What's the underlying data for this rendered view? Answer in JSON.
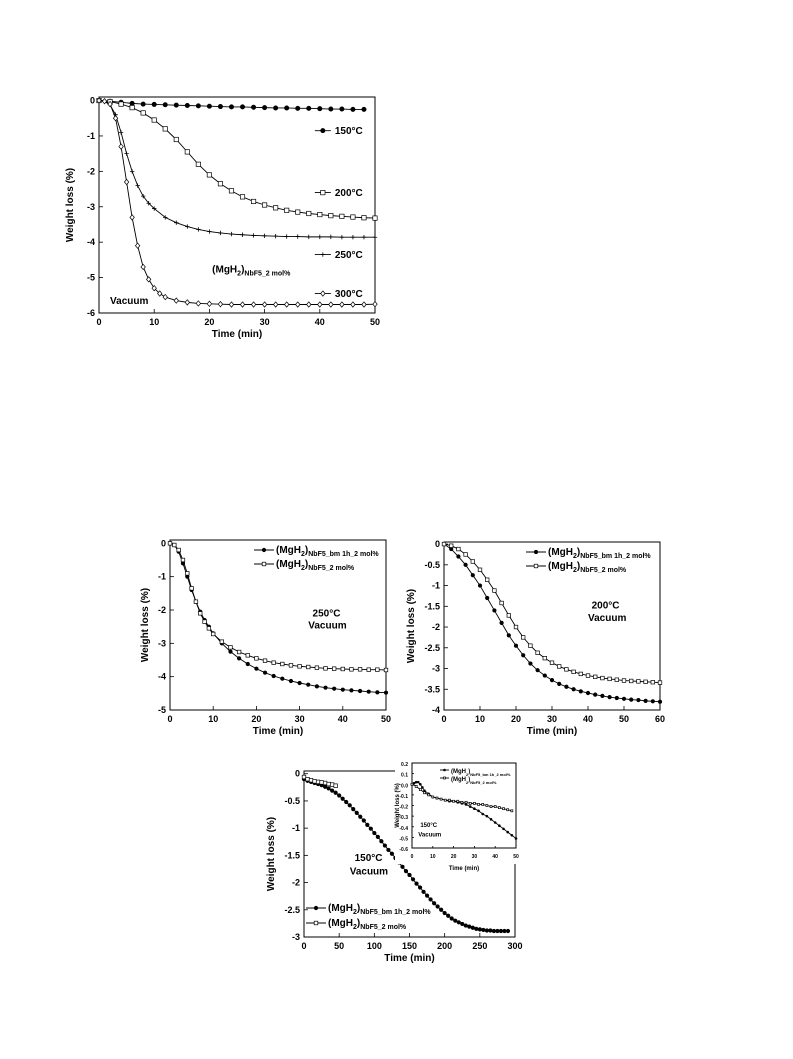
{
  "chart_data": [
    {
      "id": "top",
      "type": "line",
      "xlabel": "Time (min)",
      "ylabel": "Weight loss (%)",
      "xlim": [
        0,
        50
      ],
      "ylim": [
        -6,
        0.1
      ],
      "xticks": [
        0,
        10,
        20,
        30,
        40,
        50
      ],
      "yticks": [
        0,
        -1,
        -2,
        -3,
        -4,
        -5,
        -6
      ],
      "annotations": [
        {
          "main": "(MgH",
          "sub1": "2",
          "close": ")",
          "sub2": "NbF5_2 mol%",
          "at": [
            20.5,
            -4.85
          ]
        },
        {
          "main": "Vacuum",
          "at": [
            2,
            -5.75
          ]
        }
      ],
      "series": [
        {
          "name": "150°C",
          "marker": "filled-circle",
          "label_at": [
            42,
            -0.85
          ],
          "x": [
            0,
            2,
            4,
            6,
            8,
            10,
            12,
            14,
            16,
            18,
            20,
            22,
            24,
            26,
            28,
            30,
            32,
            34,
            36,
            38,
            40,
            42,
            44,
            46,
            48
          ],
          "y": [
            0,
            -0.02,
            -0.05,
            -0.08,
            -0.1,
            -0.11,
            -0.12,
            -0.13,
            -0.14,
            -0.15,
            -0.16,
            -0.17,
            -0.18,
            -0.18,
            -0.19,
            -0.2,
            -0.21,
            -0.21,
            -0.22,
            -0.22,
            -0.23,
            -0.24,
            -0.24,
            -0.25,
            -0.25
          ]
        },
        {
          "name": "200°C",
          "marker": "open-square",
          "label_at": [
            42,
            -2.6
          ],
          "x": [
            0,
            2,
            4,
            6,
            8,
            10,
            12,
            14,
            16,
            18,
            20,
            22,
            24,
            26,
            28,
            30,
            32,
            34,
            36,
            38,
            40,
            42,
            44,
            46,
            48,
            50
          ],
          "y": [
            0,
            -0.03,
            -0.1,
            -0.2,
            -0.35,
            -0.55,
            -0.8,
            -1.1,
            -1.45,
            -1.8,
            -2.1,
            -2.35,
            -2.55,
            -2.72,
            -2.85,
            -2.95,
            -3.03,
            -3.1,
            -3.15,
            -3.19,
            -3.22,
            -3.25,
            -3.27,
            -3.29,
            -3.31,
            -3.32
          ]
        },
        {
          "name": "250°C",
          "marker": "plus",
          "label_at": [
            42,
            -4.35
          ],
          "x": [
            0,
            1,
            2,
            3,
            4,
            5,
            6,
            7,
            8,
            9,
            10,
            12,
            14,
            16,
            18,
            20,
            22,
            24,
            26,
            28,
            30,
            32,
            34,
            36,
            38,
            40,
            42,
            44,
            46,
            48,
            50
          ],
          "y": [
            0,
            -0.03,
            -0.12,
            -0.4,
            -0.9,
            -1.5,
            -2.0,
            -2.4,
            -2.7,
            -2.9,
            -3.05,
            -3.3,
            -3.45,
            -3.56,
            -3.64,
            -3.7,
            -3.74,
            -3.77,
            -3.79,
            -3.81,
            -3.82,
            -3.83,
            -3.84,
            -3.84,
            -3.85,
            -3.85,
            -3.85,
            -3.86,
            -3.86,
            -3.86,
            -3.86
          ]
        },
        {
          "name": "300°C",
          "marker": "open-diamond",
          "label_at": [
            42,
            -5.45
          ],
          "x": [
            0,
            1,
            2,
            3,
            4,
            5,
            6,
            7,
            8,
            9,
            10,
            11,
            12,
            14,
            16,
            18,
            20,
            22,
            24,
            26,
            28,
            30,
            32,
            34,
            36,
            38,
            40,
            42,
            44,
            46,
            48,
            50
          ],
          "y": [
            0,
            -0.02,
            -0.1,
            -0.5,
            -1.3,
            -2.3,
            -3.3,
            -4.1,
            -4.7,
            -5.05,
            -5.3,
            -5.45,
            -5.55,
            -5.65,
            -5.7,
            -5.73,
            -5.74,
            -5.75,
            -5.76,
            -5.76,
            -5.76,
            -5.76,
            -5.76,
            -5.76,
            -5.76,
            -5.76,
            -5.76,
            -5.76,
            -5.76,
            -5.76,
            -5.76,
            -5.75
          ]
        }
      ]
    },
    {
      "id": "mid-left",
      "type": "line",
      "xlabel": "Time (min)",
      "ylabel": "Weight loss (%)",
      "xlim": [
        0,
        50
      ],
      "ylim": [
        -5,
        0.1
      ],
      "xticks": [
        0,
        10,
        20,
        30,
        40,
        50
      ],
      "yticks": [
        0,
        -1,
        -2,
        -3,
        -4,
        -5
      ],
      "annotations": [
        {
          "main": "250°C",
          "at": [
            33,
            -2.2
          ]
        },
        {
          "main": "Vacuum",
          "at": [
            32,
            -2.55
          ]
        }
      ],
      "series": [
        {
          "name_main": "(MgH",
          "name_sub1": "2",
          "name_close": ")",
          "name_sub2": "NbF5_bm 1h_2 mol%",
          "marker": "filled-circle",
          "x": [
            0,
            1,
            2,
            3,
            4,
            5,
            6,
            7,
            8,
            9,
            10,
            12,
            14,
            16,
            18,
            20,
            22,
            24,
            26,
            28,
            30,
            32,
            34,
            36,
            38,
            40,
            42,
            44,
            46,
            48,
            50
          ],
          "y": [
            0,
            -0.05,
            -0.25,
            -0.6,
            -1.0,
            -1.4,
            -1.75,
            -2.05,
            -2.3,
            -2.5,
            -2.7,
            -3.0,
            -3.25,
            -3.45,
            -3.62,
            -3.76,
            -3.88,
            -3.98,
            -4.06,
            -4.13,
            -4.19,
            -4.24,
            -4.29,
            -4.33,
            -4.36,
            -4.39,
            -4.41,
            -4.43,
            -4.45,
            -4.47,
            -4.48
          ]
        },
        {
          "name_main": "(MgH",
          "name_sub1": "2",
          "name_close": ")",
          "name_sub2": "NbF5_2 mol%",
          "marker": "open-square",
          "x": [
            0,
            1,
            2,
            3,
            4,
            5,
            6,
            7,
            8,
            9,
            10,
            12,
            14,
            16,
            18,
            20,
            22,
            24,
            26,
            28,
            30,
            32,
            34,
            36,
            38,
            40,
            42,
            44,
            46,
            48,
            50
          ],
          "y": [
            0,
            -0.05,
            -0.2,
            -0.5,
            -0.9,
            -1.35,
            -1.75,
            -2.1,
            -2.35,
            -2.55,
            -2.72,
            -2.95,
            -3.12,
            -3.26,
            -3.36,
            -3.45,
            -3.52,
            -3.58,
            -3.62,
            -3.66,
            -3.69,
            -3.71,
            -3.73,
            -3.75,
            -3.76,
            -3.77,
            -3.78,
            -3.78,
            -3.79,
            -3.79,
            -3.8
          ]
        }
      ]
    },
    {
      "id": "mid-right",
      "type": "line",
      "xlabel": "Time (min)",
      "ylabel": "Weight loss (%)",
      "xlim": [
        0,
        60
      ],
      "ylim": [
        -4,
        0.05
      ],
      "xticks": [
        0,
        10,
        20,
        30,
        40,
        50,
        60
      ],
      "yticks": [
        0,
        -0.5,
        -1,
        -1.5,
        -2,
        -2.5,
        -3,
        -3.5,
        -4
      ],
      "annotations": [
        {
          "main": "200°C",
          "at": [
            41,
            -1.55
          ]
        },
        {
          "main": "Vacuum",
          "at": [
            40,
            -1.85
          ]
        }
      ],
      "series": [
        {
          "name_main": "(MgH",
          "name_sub1": "2",
          "name_close": ")",
          "name_sub2": "NbF5_bm 1h_2 mol%",
          "marker": "filled-circle",
          "x": [
            0,
            2,
            4,
            6,
            8,
            10,
            12,
            14,
            16,
            18,
            20,
            22,
            24,
            26,
            28,
            30,
            32,
            34,
            36,
            38,
            40,
            42,
            44,
            46,
            48,
            50,
            52,
            54,
            56,
            58,
            60
          ],
          "y": [
            0,
            -0.12,
            -0.3,
            -0.5,
            -0.75,
            -1.0,
            -1.3,
            -1.6,
            -1.9,
            -2.2,
            -2.45,
            -2.68,
            -2.88,
            -3.04,
            -3.17,
            -3.28,
            -3.37,
            -3.44,
            -3.5,
            -3.55,
            -3.59,
            -3.63,
            -3.66,
            -3.69,
            -3.71,
            -3.73,
            -3.75,
            -3.76,
            -3.78,
            -3.79,
            -3.8
          ]
        },
        {
          "name_main": "(MgH",
          "name_sub1": "2",
          "name_close": ")",
          "name_sub2": "NbF5_2 mol%",
          "marker": "open-square",
          "x": [
            0,
            2,
            4,
            6,
            8,
            10,
            12,
            14,
            16,
            18,
            20,
            22,
            24,
            26,
            28,
            30,
            32,
            34,
            36,
            38,
            40,
            42,
            44,
            46,
            48,
            50,
            52,
            54,
            56,
            58,
            60
          ],
          "y": [
            0,
            -0.04,
            -0.12,
            -0.25,
            -0.42,
            -0.62,
            -0.86,
            -1.12,
            -1.42,
            -1.72,
            -2.0,
            -2.25,
            -2.45,
            -2.62,
            -2.75,
            -2.86,
            -2.95,
            -3.02,
            -3.08,
            -3.13,
            -3.17,
            -3.2,
            -3.23,
            -3.25,
            -3.27,
            -3.29,
            -3.3,
            -3.31,
            -3.32,
            -3.33,
            -3.34
          ]
        }
      ]
    },
    {
      "id": "bottom",
      "type": "line",
      "xlabel": "Time (min)",
      "ylabel": "Weight loss (%)",
      "xlim": [
        0,
        300
      ],
      "ylim": [
        -3,
        0.05
      ],
      "xticks": [
        0,
        50,
        100,
        150,
        200,
        250,
        300
      ],
      "yticks": [
        0,
        -0.5,
        -1,
        -1.5,
        -2,
        -2.5,
        -3
      ],
      "annotations": [
        {
          "main": "150°C",
          "at": [
            72,
            -1.6
          ]
        },
        {
          "main": "Vacuum",
          "at": [
            65,
            -1.85
          ]
        }
      ],
      "series": [
        {
          "name_main": "(MgH",
          "name_sub1": "2",
          "name_close": ")",
          "name_sub2": "NbF5_bm 1h_2 mol%",
          "marker": "filled-circle",
          "x": [
            0,
            5,
            10,
            15,
            20,
            25,
            30,
            35,
            40,
            45,
            50,
            55,
            60,
            65,
            70,
            75,
            80,
            85,
            90,
            95,
            100,
            105,
            110,
            115,
            120,
            125,
            130,
            135,
            140,
            145,
            150,
            155,
            160,
            165,
            170,
            175,
            180,
            185,
            190,
            195,
            200,
            205,
            210,
            215,
            220,
            225,
            230,
            235,
            240,
            245,
            250,
            255,
            260,
            265,
            270,
            275,
            280,
            285,
            290
          ],
          "y": [
            -0.1,
            -0.13,
            -0.15,
            -0.17,
            -0.19,
            -0.21,
            -0.24,
            -0.27,
            -0.31,
            -0.35,
            -0.4,
            -0.46,
            -0.52,
            -0.58,
            -0.65,
            -0.72,
            -0.79,
            -0.86,
            -0.94,
            -1.01,
            -1.09,
            -1.16,
            -1.24,
            -1.32,
            -1.4,
            -1.47,
            -1.55,
            -1.63,
            -1.71,
            -1.79,
            -1.86,
            -1.94,
            -2.02,
            -2.09,
            -2.17,
            -2.24,
            -2.31,
            -2.38,
            -2.44,
            -2.5,
            -2.56,
            -2.61,
            -2.66,
            -2.7,
            -2.73,
            -2.76,
            -2.79,
            -2.81,
            -2.83,
            -2.85,
            -2.86,
            -2.87,
            -2.88,
            -2.88,
            -2.89,
            -2.89,
            -2.89,
            -2.89,
            -2.89
          ]
        },
        {
          "name_main": "(MgH",
          "name_sub1": "2",
          "name_close": ")",
          "name_sub2": "NbF5_2 mol%",
          "marker": "open-square",
          "x": [
            0,
            5,
            10,
            15,
            20,
            25,
            30,
            35,
            40,
            45
          ],
          "y": [
            -0.06,
            -0.1,
            -0.12,
            -0.14,
            -0.15,
            -0.16,
            -0.17,
            -0.19,
            -0.2,
            -0.22
          ]
        }
      ],
      "inset": {
        "xlabel": "Time (min)",
        "ylabel": "Weight loss (%)",
        "xlim": [
          0,
          50
        ],
        "ylim": [
          -0.6,
          0.2
        ],
        "xticks": [
          0,
          10,
          20,
          30,
          40,
          50
        ],
        "yticks": [
          0.2,
          0.1,
          0.0,
          -0.1,
          -0.2,
          -0.3,
          -0.4,
          -0.5,
          -0.6
        ],
        "ytick_labels": [
          "0.2",
          "0.1",
          "0.0",
          "-0.1",
          "-0.2",
          "-0.3",
          "-0.4",
          "-0.5",
          "-0.6"
        ],
        "annotations": [
          {
            "main": "150°C",
            "at": [
              4,
              -0.4
            ]
          },
          {
            "main": "Vacuum",
            "at": [
              3,
              -0.49
            ]
          }
        ],
        "series": [
          {
            "name_main": "(MgH",
            "name_sub1": "2",
            "name_close": ")",
            "name_sub2": "NbF5_bm 1h_2 mol%",
            "marker": "filled-circle",
            "x": [
              0,
              1,
              2,
              3,
              4,
              5,
              6,
              8,
              10,
              12,
              14,
              16,
              18,
              20,
              22,
              24,
              26,
              28,
              30,
              32,
              34,
              36,
              38,
              40,
              42,
              44,
              46,
              48,
              50
            ],
            "y": [
              0,
              0.01,
              0.02,
              0.02,
              0.0,
              -0.03,
              -0.06,
              -0.09,
              -0.12,
              -0.13,
              -0.14,
              -0.15,
              -0.16,
              -0.16,
              -0.17,
              -0.18,
              -0.19,
              -0.21,
              -0.23,
              -0.25,
              -0.28,
              -0.3,
              -0.33,
              -0.36,
              -0.39,
              -0.42,
              -0.45,
              -0.48,
              -0.51
            ]
          },
          {
            "name_main": "(MgH",
            "name_sub1": "2",
            "name_close": ")",
            "name_sub2": "NbF5_2 mol%",
            "marker": "open-square",
            "x": [
              0,
              2,
              4,
              6,
              8,
              10,
              12,
              14,
              16,
              18,
              20,
              22,
              24,
              26,
              28,
              30,
              32,
              34,
              36,
              38,
              40,
              42,
              44,
              46,
              48
            ],
            "y": [
              0,
              -0.02,
              -0.05,
              -0.08,
              -0.1,
              -0.12,
              -0.13,
              -0.14,
              -0.15,
              -0.15,
              -0.16,
              -0.16,
              -0.17,
              -0.17,
              -0.18,
              -0.18,
              -0.19,
              -0.19,
              -0.2,
              -0.21,
              -0.21,
              -0.22,
              -0.23,
              -0.24,
              -0.25
            ]
          }
        ]
      }
    }
  ]
}
